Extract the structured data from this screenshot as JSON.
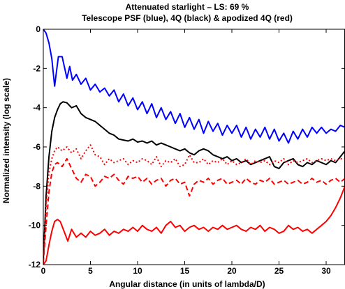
{
  "chart_data": {
    "type": "line",
    "title": "Attenuated starlight – LS: 69 %",
    "subtitle": "Telescope PSF (blue), 4Q (black) & apodized 4Q (red)",
    "xlabel": "Angular distance (in units of lambda/D)",
    "ylabel": "Normalized intensity (log scale)",
    "xlim": [
      0,
      32
    ],
    "ylim": [
      -12,
      0
    ],
    "xticks": [
      0,
      5,
      10,
      15,
      20,
      25,
      30
    ],
    "yticks": [
      0,
      -2,
      -4,
      -6,
      -8,
      -10,
      -12
    ],
    "grid": false,
    "legend": "none",
    "colors": {
      "blue": "#0000ff",
      "black": "#000000",
      "red": "#ff0000"
    },
    "series": [
      {
        "color": "#0000ff",
        "style": "solid",
        "x": [
          0,
          0.3,
          0.6,
          0.9,
          1.2,
          1.6,
          2.0,
          2.5,
          2.8,
          3.1,
          3.5,
          4.0,
          4.5,
          5.0,
          5.5,
          6.0,
          6.5,
          7.0,
          7.5,
          8.0,
          8.5,
          9.0,
          9.5,
          10.0,
          10.5,
          11.0,
          11.5,
          12.0,
          12.5,
          13.0,
          13.5,
          14.0,
          14.5,
          15.0,
          15.5,
          16.0,
          16.5,
          17.0,
          17.5,
          18.0,
          18.5,
          19.0,
          19.5,
          20.0,
          20.5,
          21.0,
          21.5,
          22.0,
          22.5,
          23.0,
          23.5,
          24.0,
          24.5,
          25.0,
          25.5,
          26.0,
          26.5,
          27.0,
          27.5,
          28.0,
          28.5,
          29.0,
          29.5,
          30.0,
          30.5,
          31.0,
          31.5,
          32.0
        ],
        "y": [
          0.0,
          -0.2,
          -0.7,
          -1.5,
          -2.9,
          -1.4,
          -1.4,
          -2.5,
          -1.9,
          -2.6,
          -2.3,
          -2.8,
          -2.5,
          -3.1,
          -2.8,
          -3.2,
          -3.0,
          -3.4,
          -3.1,
          -3.7,
          -3.3,
          -3.9,
          -3.5,
          -4.1,
          -3.7,
          -4.3,
          -3.8,
          -4.5,
          -4.0,
          -4.6,
          -4.2,
          -4.8,
          -4.3,
          -5.0,
          -4.5,
          -5.1,
          -4.6,
          -5.3,
          -4.7,
          -5.2,
          -4.8,
          -5.4,
          -4.9,
          -5.3,
          -4.9,
          -5.5,
          -5.0,
          -5.6,
          -5.1,
          -5.5,
          -5.0,
          -5.6,
          -5.1,
          -5.7,
          -5.3,
          -5.8,
          -5.2,
          -5.6,
          -5.1,
          -5.5,
          -5.0,
          -5.3,
          -5.0,
          -5.3,
          -5.1,
          -5.2,
          -4.9,
          -5.0
        ]
      },
      {
        "color": "#000000",
        "style": "solid",
        "x": [
          0,
          0.3,
          0.6,
          0.9,
          1.2,
          1.5,
          1.8,
          2.1,
          2.5,
          3.0,
          3.5,
          4.0,
          4.5,
          5.0,
          5.5,
          6.0,
          6.5,
          7.0,
          7.5,
          8.0,
          8.5,
          9.0,
          9.5,
          10.0,
          10.5,
          11.0,
          11.5,
          12.0,
          12.5,
          13.0,
          13.5,
          14.0,
          14.5,
          15.0,
          15.5,
          16.0,
          16.5,
          17.0,
          17.5,
          18.0,
          18.5,
          19.0,
          19.5,
          20.0,
          20.5,
          21.0,
          21.5,
          22.0,
          22.5,
          23.0,
          23.5,
          24.0,
          24.5,
          25.0,
          25.5,
          26.0,
          26.5,
          27.0,
          27.5,
          28.0,
          28.5,
          29.0,
          29.5,
          30.0,
          30.5,
          31.0,
          31.5,
          32.0
        ],
        "y": [
          -11.8,
          -8.5,
          -6.5,
          -5.2,
          -4.5,
          -4.1,
          -3.8,
          -3.7,
          -3.75,
          -4.0,
          -3.9,
          -4.3,
          -4.5,
          -4.6,
          -4.7,
          -4.9,
          -5.1,
          -5.3,
          -5.4,
          -5.6,
          -5.65,
          -5.7,
          -5.6,
          -5.75,
          -5.7,
          -5.8,
          -5.7,
          -5.9,
          -5.8,
          -5.9,
          -6.0,
          -6.1,
          -6.2,
          -6.1,
          -6.3,
          -6.4,
          -6.2,
          -6.1,
          -6.2,
          -6.4,
          -6.5,
          -6.6,
          -6.5,
          -6.7,
          -6.6,
          -6.8,
          -6.7,
          -6.9,
          -6.8,
          -6.7,
          -6.6,
          -6.5,
          -7.0,
          -7.1,
          -6.8,
          -6.7,
          -6.6,
          -6.9,
          -7.0,
          -6.8,
          -6.9,
          -6.7,
          -6.8,
          -6.9,
          -6.7,
          -6.8,
          -6.5,
          -6.2
        ]
      },
      {
        "color": "#ff0000",
        "style": "dotted",
        "x": [
          0,
          0.3,
          0.6,
          0.9,
          1.2,
          1.5,
          2.0,
          2.5,
          3.0,
          3.5,
          4.0,
          4.5,
          5.0,
          5.5,
          6.0,
          6.5,
          7.0,
          7.5,
          8.0,
          8.5,
          9.0,
          9.5,
          10.0,
          10.5,
          11.0,
          11.5,
          12.0,
          12.5,
          13.0,
          13.5,
          14.0,
          14.5,
          15.0,
          15.5,
          16.0,
          16.5,
          17.0,
          17.5,
          18.0,
          18.5,
          19.0,
          19.5,
          20.0,
          20.5,
          21.0,
          21.5,
          22.0,
          22.5,
          23.0,
          23.5,
          24.0,
          24.5,
          25.0,
          25.5,
          26.0,
          26.5,
          27.0,
          27.5,
          28.0,
          28.5,
          29.0,
          29.5,
          30.0,
          30.5,
          31.0,
          31.5,
          32.0
        ],
        "y": [
          -11.9,
          -9.0,
          -7.3,
          -6.6,
          -6.2,
          -6.0,
          -6.2,
          -6.0,
          -6.3,
          -6.1,
          -6.6,
          -6.2,
          -5.9,
          -6.4,
          -6.5,
          -6.9,
          -6.6,
          -6.8,
          -6.7,
          -6.6,
          -6.9,
          -6.7,
          -6.8,
          -6.6,
          -6.7,
          -6.9,
          -6.5,
          -7.0,
          -6.7,
          -6.8,
          -6.6,
          -7.0,
          -6.9,
          -6.4,
          -6.8,
          -6.8,
          -6.6,
          -6.9,
          -6.7,
          -6.8,
          -6.6,
          -6.9,
          -6.7,
          -6.9,
          -6.8,
          -6.6,
          -6.9,
          -6.7,
          -6.8,
          -6.7,
          -6.9,
          -6.7,
          -6.8,
          -6.6,
          -6.9,
          -6.7,
          -6.8,
          -6.7,
          -6.6,
          -6.8,
          -6.7,
          -6.6,
          -6.7,
          -6.6,
          -6.7,
          -6.6,
          -6.6
        ]
      },
      {
        "color": "#ff0000",
        "style": "dashed",
        "x": [
          0,
          0.3,
          0.6,
          0.9,
          1.2,
          1.5,
          2.0,
          2.5,
          3.0,
          3.5,
          4.0,
          4.5,
          5.0,
          5.5,
          6.0,
          6.5,
          7.0,
          7.5,
          8.0,
          8.5,
          9.0,
          9.5,
          10.0,
          10.5,
          11.0,
          11.5,
          12.0,
          12.5,
          13.0,
          13.5,
          14.0,
          14.5,
          15.0,
          15.5,
          16.0,
          16.5,
          17.0,
          17.5,
          18.0,
          18.5,
          19.0,
          19.5,
          20.0,
          20.5,
          21.0,
          21.5,
          22.0,
          22.5,
          23.0,
          23.5,
          24.0,
          24.5,
          25.0,
          25.5,
          26.0,
          26.5,
          27.0,
          27.5,
          28.0,
          28.5,
          29.0,
          29.5,
          30.0,
          30.5,
          31.0,
          31.5,
          32.0
        ],
        "y": [
          -11.9,
          -10.0,
          -8.3,
          -7.3,
          -6.9,
          -6.8,
          -7.0,
          -6.6,
          -7.1,
          -7.6,
          -7.8,
          -7.4,
          -7.5,
          -8.0,
          -7.8,
          -7.5,
          -7.6,
          -7.4,
          -7.7,
          -7.9,
          -7.5,
          -7.6,
          -7.5,
          -7.8,
          -7.6,
          -7.9,
          -7.7,
          -7.6,
          -8.0,
          -7.7,
          -7.6,
          -7.9,
          -7.8,
          -8.5,
          -7.9,
          -7.7,
          -7.8,
          -7.6,
          -7.9,
          -7.7,
          -7.6,
          -7.9,
          -7.8,
          -7.7,
          -7.9,
          -7.6,
          -7.8,
          -7.9,
          -7.7,
          -7.8,
          -7.6,
          -7.9,
          -7.8,
          -7.7,
          -7.9,
          -7.8,
          -7.7,
          -7.9,
          -7.8,
          -7.6,
          -7.8,
          -7.7,
          -7.9,
          -7.7,
          -7.6,
          -7.8,
          -7.6
        ]
      },
      {
        "color": "#ff0000",
        "style": "solid",
        "x": [
          0,
          0.3,
          0.6,
          0.9,
          1.2,
          1.5,
          1.8,
          2.2,
          2.6,
          3.0,
          3.5,
          4.0,
          4.5,
          5.0,
          5.5,
          6.0,
          6.5,
          7.0,
          7.5,
          8.0,
          8.5,
          9.0,
          9.5,
          10.0,
          10.5,
          11.0,
          11.5,
          12.0,
          12.5,
          13.0,
          13.5,
          14.0,
          14.5,
          15.0,
          15.5,
          16.0,
          16.5,
          17.0,
          17.5,
          18.0,
          18.5,
          19.0,
          19.5,
          20.0,
          20.5,
          21.0,
          21.5,
          22.0,
          22.5,
          23.0,
          23.5,
          24.0,
          24.5,
          25.0,
          25.5,
          26.0,
          26.5,
          27.0,
          27.5,
          28.0,
          28.5,
          29.0,
          29.5,
          30.0,
          30.5,
          31.0,
          31.5,
          32.0
        ],
        "y": [
          -12.0,
          -11.8,
          -11.0,
          -10.3,
          -9.8,
          -9.7,
          -9.8,
          -10.3,
          -10.8,
          -10.2,
          -10.6,
          -10.4,
          -10.6,
          -10.3,
          -10.5,
          -10.4,
          -10.2,
          -10.5,
          -10.3,
          -10.4,
          -10.2,
          -10.3,
          -10.1,
          -10.3,
          -10.0,
          -10.2,
          -10.3,
          -10.1,
          -10.4,
          -10.0,
          -9.8,
          -10.1,
          -10.0,
          -10.3,
          -10.1,
          -10.0,
          -10.2,
          -10.1,
          -10.3,
          -10.1,
          -10.2,
          -10.0,
          -10.2,
          -10.1,
          -10.0,
          -10.2,
          -10.3,
          -10.1,
          -10.2,
          -10.0,
          -10.3,
          -10.1,
          -10.2,
          -10.4,
          -10.3,
          -10.0,
          -10.2,
          -10.1,
          -10.3,
          -10.2,
          -10.4,
          -10.2,
          -10.0,
          -9.8,
          -9.5,
          -9.1,
          -8.6,
          -8.0
        ]
      }
    ]
  }
}
